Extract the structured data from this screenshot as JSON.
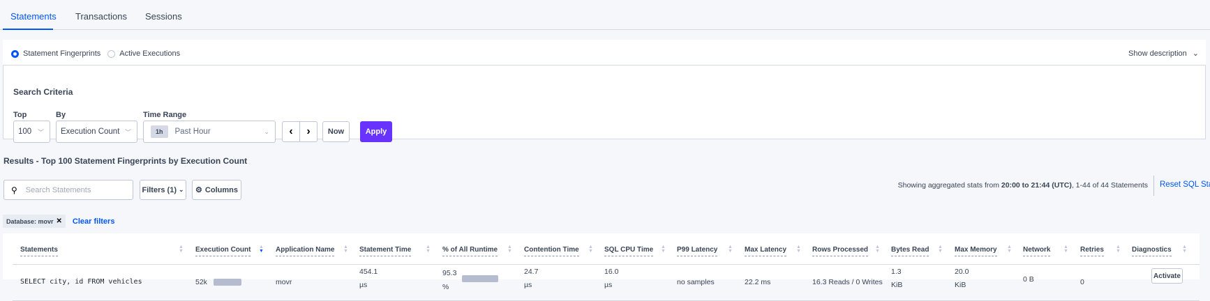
{
  "tabs": [
    {
      "label": "Statements",
      "active": true
    },
    {
      "label": "Transactions"
    },
    {
      "label": "Sessions"
    }
  ],
  "view_toggle": {
    "options": [
      "Statement Fingerprints",
      "Active Executions"
    ],
    "selected": "Statement Fingerprints",
    "show_description": "Show description"
  },
  "search_criteria": {
    "title": "Search Criteria",
    "top_label": "Top",
    "top_value": "100",
    "by_label": "By",
    "by_value": "Execution Count",
    "time_range_label": "Time Range",
    "time_badge": "1h",
    "time_value": "Past Hour",
    "now_label": "Now",
    "apply_label": "Apply"
  },
  "results": {
    "title": "Results - Top 100 Statement Fingerprints by Execution Count",
    "search_placeholder": "Search Statements",
    "filters_label": "Filters (1)",
    "columns_label": "Columns",
    "stats_prefix": "Showing aggregated stats from ",
    "stats_range": "20:00 to 21:44 (UTC)",
    "stats_suffix": ", 1-44 of 44 Statements",
    "reset_label": "Reset SQL Stats",
    "chip_label": "Database: movr",
    "clear_filters": "Clear filters"
  },
  "colors": {
    "accent": "#0055ff",
    "apply": "#6933ff"
  },
  "table": {
    "headers": [
      "Statements",
      "Execution Count",
      "Application Name",
      "Statement Time",
      "% of All Runtime",
      "Contention Time",
      "SQL CPU Time",
      "P99 Latency",
      "Max Latency",
      "Rows Processed",
      "Bytes Read",
      "Max Memory",
      "Network",
      "Retries",
      "Diagnostics"
    ],
    "sorted_column": "Execution Count",
    "rows": [
      {
        "statement": "SELECT city, id FROM vehicles",
        "execution_count": "52k",
        "execution_count_fraction": 1.0,
        "application": "movr",
        "statement_time": "454.1",
        "statement_time_unit": "µs",
        "runtime_pct": "95.3",
        "runtime_pct_unit": "%",
        "runtime_fraction": 1.0,
        "contention": "24.7",
        "contention_unit": "µs",
        "sql_cpu": "16.0",
        "sql_cpu_unit": "µs",
        "p99": "no samples",
        "max_latency": "22.2 ms",
        "rows_processed": "16.3 Reads / 0 Writes",
        "bytes_read": "1.3",
        "bytes_read_unit": "KiB",
        "max_memory": "20.0",
        "max_memory_unit": "KiB",
        "network": "0 B",
        "retries": "0",
        "diagnostics": "Activate"
      }
    ]
  }
}
